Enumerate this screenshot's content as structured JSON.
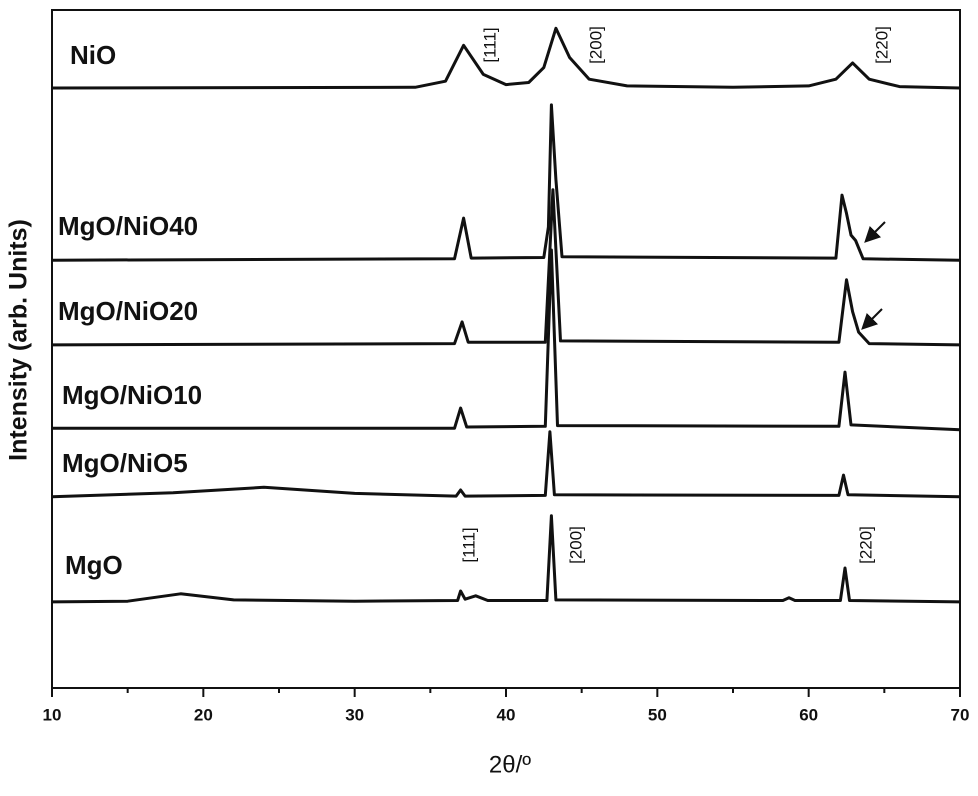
{
  "chart_data": {
    "type": "line",
    "xlabel": "2θ/º",
    "ylabel": "Intensity (arb. Units)",
    "xlim": [
      10,
      70
    ],
    "ylim": [
      0,
      100
    ],
    "xticks": [
      10,
      20,
      30,
      40,
      50,
      60,
      70
    ],
    "xminor_ticks": [
      15,
      25,
      35,
      45,
      55,
      65
    ],
    "color": "#111111",
    "series": [
      {
        "name": "NiO",
        "color": "#111111",
        "x": [
          10,
          34,
          36,
          37.2,
          38.5,
          40,
          41.5,
          42.5,
          43.3,
          44.2,
          45.5,
          48,
          55,
          60,
          61.8,
          62.9,
          64,
          66,
          70
        ],
        "values": [
          88.5,
          88.6,
          89.5,
          94.8,
          90.5,
          89.0,
          89.3,
          91.5,
          97.3,
          93.0,
          89.8,
          88.8,
          88.6,
          88.8,
          89.8,
          92.2,
          89.8,
          88.7,
          88.5
        ]
      },
      {
        "name": "MgO/NiO40",
        "color": "#111111",
        "x": [
          10,
          36.6,
          37.2,
          37.7,
          42.5,
          42.8,
          43.0,
          43.3,
          43.7,
          61.8,
          62.2,
          62.5,
          62.8,
          63.1,
          63.6,
          70
        ],
        "values": [
          63.1,
          63.3,
          69.3,
          63.4,
          63.5,
          68,
          86.0,
          75,
          63.6,
          63.4,
          72.7,
          70,
          66.8,
          66.0,
          63.3,
          63.1
        ]
      },
      {
        "name": "MgO/NiO20",
        "color": "#111111",
        "x": [
          10,
          36.6,
          37.1,
          37.5,
          42.6,
          43.1,
          43.6,
          62.0,
          62.5,
          62.9,
          63.3,
          64,
          70
        ],
        "values": [
          50.6,
          50.8,
          54.0,
          51.0,
          51.0,
          73.5,
          51.2,
          51.0,
          60.2,
          55.5,
          52.5,
          50.8,
          50.6
        ]
      },
      {
        "name": "MgO/NiO10",
        "color": "#111111",
        "x": [
          10,
          36.6,
          37.0,
          37.4,
          42.6,
          43.0,
          43.4,
          62.0,
          62.4,
          62.8,
          70
        ],
        "values": [
          38.3,
          38.3,
          41.3,
          38.5,
          38.6,
          64.6,
          38.7,
          38.6,
          46.6,
          38.8,
          38.1
        ]
      },
      {
        "name": "MgO/NiO5",
        "color": "#111111",
        "x": [
          10,
          18,
          24,
          30,
          36.7,
          37.0,
          37.3,
          42.6,
          42.9,
          43.2,
          62.0,
          62.3,
          62.6,
          70
        ],
        "values": [
          28.2,
          28.8,
          29.6,
          28.7,
          28.3,
          29.2,
          28.3,
          28.4,
          37.8,
          28.5,
          28.4,
          31.4,
          28.5,
          28.2
        ]
      },
      {
        "name": "MgO",
        "color": "#111111",
        "x": [
          10,
          15,
          18.5,
          22,
          30,
          36.8,
          37.0,
          37.3,
          38.0,
          38.8,
          42.7,
          43.0,
          43.3,
          58.3,
          58.7,
          59.1,
          62.1,
          62.4,
          62.7,
          70
        ],
        "values": [
          12.7,
          12.8,
          13.9,
          13.0,
          12.8,
          12.9,
          14.3,
          13.1,
          13.6,
          12.9,
          12.9,
          25.4,
          13.0,
          12.9,
          13.3,
          12.9,
          12.9,
          17.7,
          12.9,
          12.7
        ]
      }
    ],
    "annotations": [
      "[111]",
      "[200]",
      "[220]",
      "[111]",
      "[200]",
      "[220]"
    ]
  }
}
